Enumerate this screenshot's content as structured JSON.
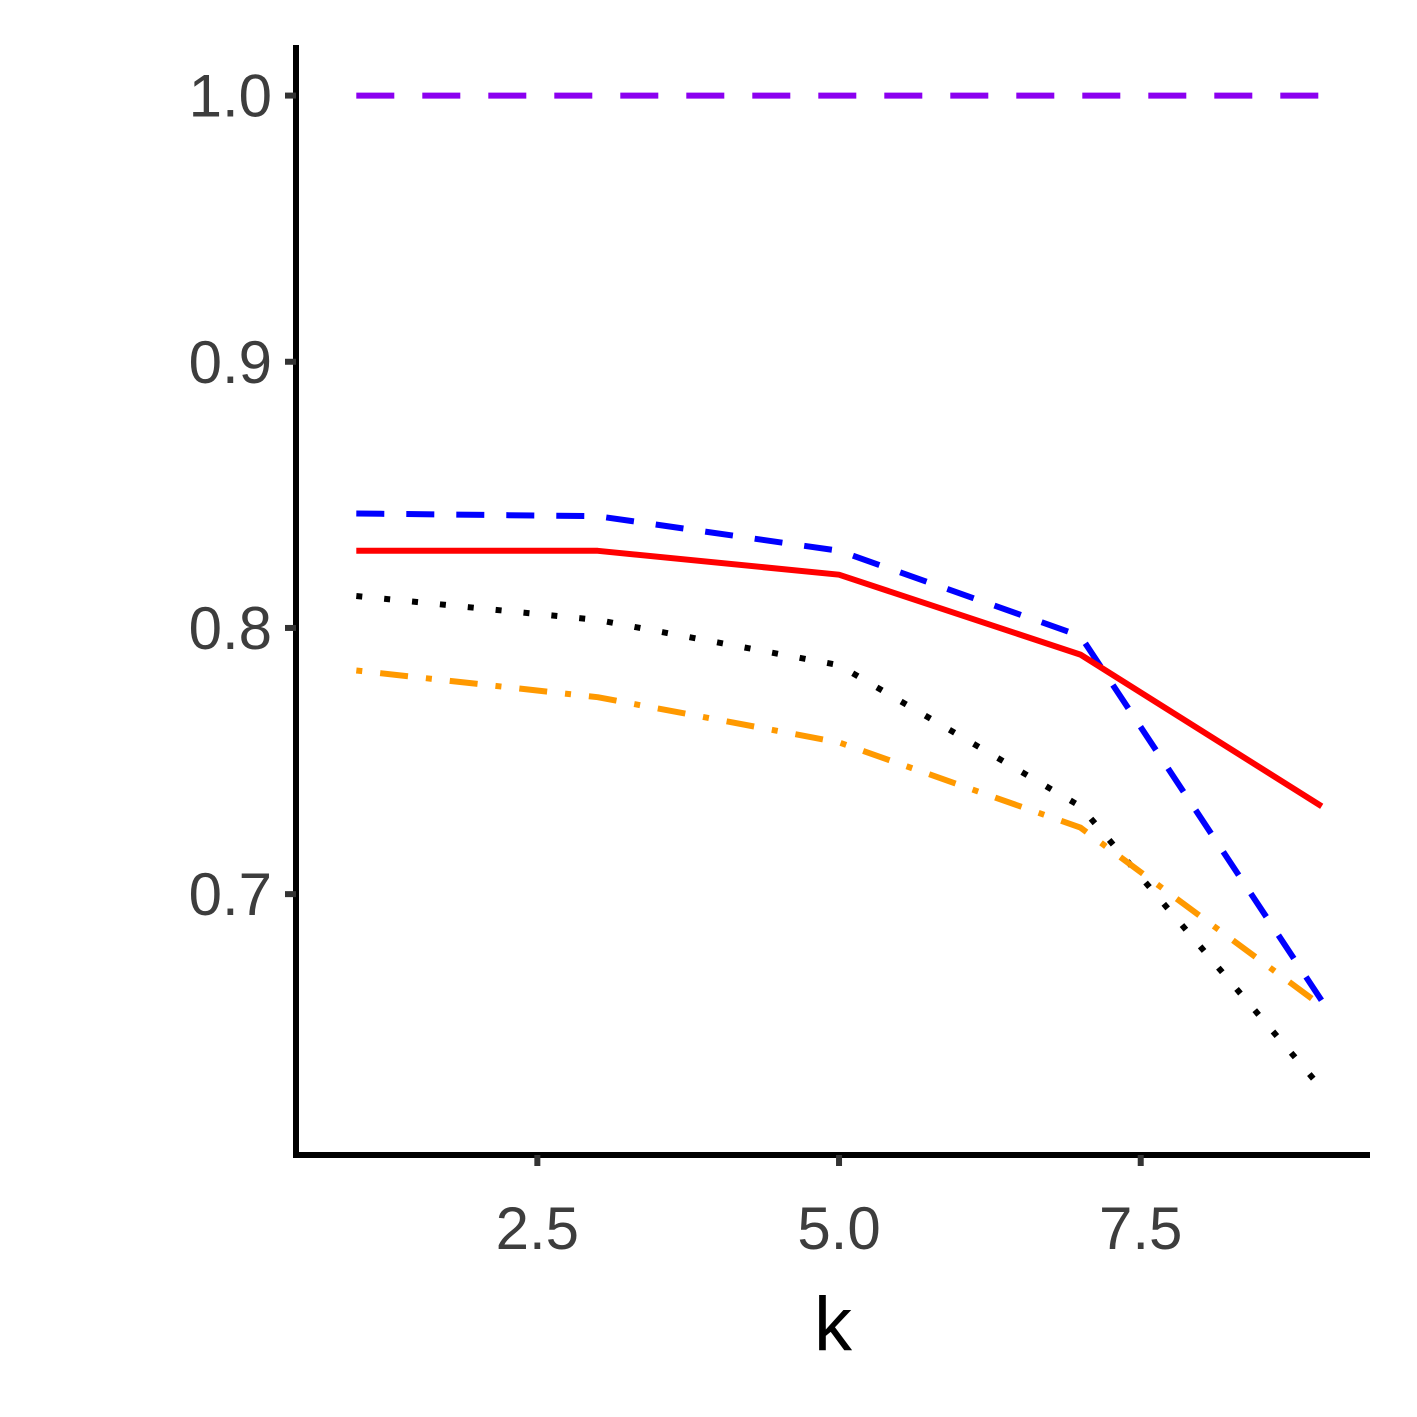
{
  "chart_data": {
    "type": "line",
    "title": "",
    "xlabel": "k",
    "ylabel": "",
    "x": [
      1,
      3,
      5,
      7,
      9
    ],
    "xlim": [
      0.5,
      9.4
    ],
    "ylim": [
      0.602,
      1.019
    ],
    "xticks": [
      2.5,
      5.0,
      7.5
    ],
    "xtick_labels": [
      "2.5",
      "5.0",
      "7.5"
    ],
    "yticks": [
      0.7,
      0.8,
      0.9,
      1.0
    ],
    "ytick_labels": [
      "0.7",
      "0.8",
      "0.9",
      "1.0"
    ],
    "grid": false,
    "legend": "none",
    "series": [
      {
        "color": "#8B00F0",
        "dash": "long-dash",
        "values": [
          1.0,
          1.0,
          1.0,
          1.0,
          1.0
        ]
      },
      {
        "color": "#0000FF",
        "dash": "dash",
        "values": [
          0.843,
          0.842,
          0.829,
          0.797,
          0.66
        ]
      },
      {
        "color": "#FF0000",
        "dash": "solid",
        "values": [
          0.829,
          0.829,
          0.82,
          0.79,
          0.733
        ]
      },
      {
        "color": "#000000",
        "dash": "dotted",
        "values": [
          0.812,
          0.803,
          0.786,
          0.733,
          0.627
        ]
      },
      {
        "color": "#FF9900",
        "dash": "dot-dash",
        "values": [
          0.784,
          0.774,
          0.757,
          0.725,
          0.658
        ]
      }
    ]
  }
}
